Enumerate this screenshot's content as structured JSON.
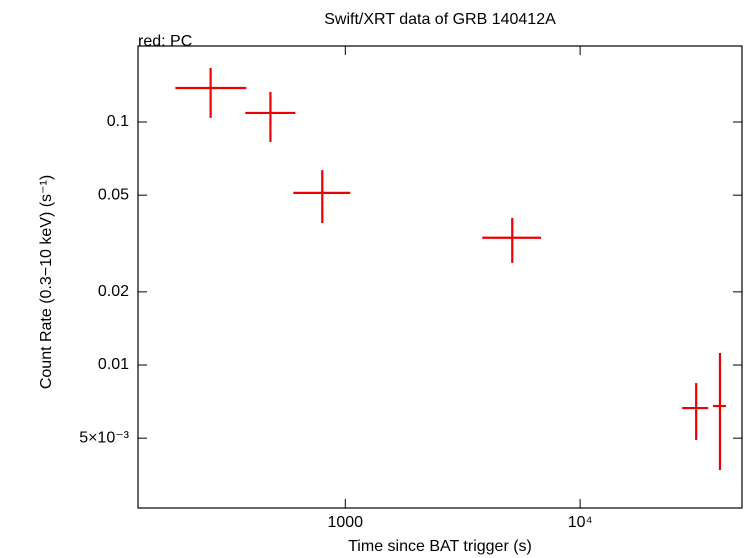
{
  "chart_data": {
    "type": "errorbar-scatter",
    "title": "Swift/XRT data of GRB 140412A",
    "annotation": "red: PC",
    "x_label": "Time since BAT trigger (s)",
    "y_label": "Count Rate (0.3−10 keV) (s⁻¹)",
    "x_scale": "log",
    "y_scale": "log",
    "color": "#ee0000",
    "xlim": [
      131,
      48900
    ],
    "ylim": [
      0.00258,
      0.2055
    ],
    "xticks": [
      1000,
      {
        "value": 10000,
        "label": "10⁴"
      }
    ],
    "yticks": [
      0.1,
      0.05,
      0.02,
      0.01,
      {
        "value": 0.005,
        "label": "5×10⁻³"
      }
    ],
    "series": [
      {
        "name": "PC",
        "color": "#ee0000",
        "x": [
          267,
          480,
          798,
          5140,
          31200,
          39400
        ],
        "x_lo": [
          189,
          375,
          601,
          3830,
          27200,
          36800
        ],
        "x_hi": [
          379,
          613,
          1050,
          6820,
          35100,
          41800
        ],
        "values": [
          0.138,
          0.109,
          0.0511,
          0.0334,
          0.00665,
          0.00678
        ],
        "y_lo": [
          0.104,
          0.0828,
          0.0384,
          0.0263,
          0.00491,
          0.0037
        ],
        "y_hi": [
          0.167,
          0.133,
          0.0634,
          0.0403,
          0.00843,
          0.0112
        ]
      }
    ]
  }
}
